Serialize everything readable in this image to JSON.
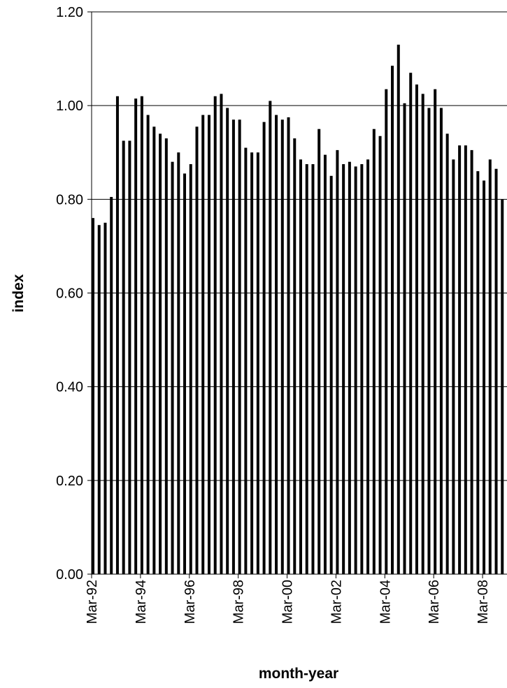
{
  "chart_data": {
    "type": "bar",
    "title": "",
    "xlabel": "month-year",
    "ylabel": "index",
    "ylim": [
      0,
      1.2
    ],
    "yticks": [
      "0.00",
      "0.20",
      "0.40",
      "0.60",
      "0.80",
      "1.00",
      "1.20"
    ],
    "grid": "horizontal major gridlines",
    "legend": "none",
    "bar_color": "#000000",
    "xtick_labels": [
      "Mar-92",
      "Mar-94",
      "Mar-96",
      "Mar-98",
      "Mar-00",
      "Mar-02",
      "Mar-04",
      "Mar-06",
      "Mar-08"
    ],
    "categories": [
      "Mar-92",
      "Jun-92",
      "Sep-92",
      "Dec-92",
      "Mar-93",
      "Jun-93",
      "Sep-93",
      "Dec-93",
      "Mar-94",
      "Jun-94",
      "Sep-94",
      "Dec-94",
      "Mar-95",
      "Jun-95",
      "Sep-95",
      "Dec-95",
      "Mar-96",
      "Jun-96",
      "Sep-96",
      "Dec-96",
      "Mar-97",
      "Jun-97",
      "Sep-97",
      "Dec-97",
      "Mar-98",
      "Jun-98",
      "Sep-98",
      "Dec-98",
      "Mar-99",
      "Jun-99",
      "Sep-99",
      "Dec-99",
      "Mar-00",
      "Jun-00",
      "Sep-00",
      "Dec-00",
      "Mar-01",
      "Jun-01",
      "Sep-01",
      "Dec-01",
      "Mar-02",
      "Jun-02",
      "Sep-02",
      "Dec-02",
      "Mar-03",
      "Jun-03",
      "Sep-03",
      "Dec-03",
      "Mar-04",
      "Jun-04",
      "Sep-04",
      "Dec-04",
      "Mar-05",
      "Jun-05",
      "Sep-05",
      "Dec-05",
      "Mar-06",
      "Jun-06",
      "Sep-06",
      "Dec-06",
      "Mar-07",
      "Jun-07",
      "Sep-07",
      "Dec-07",
      "Mar-08",
      "Jun-08",
      "Sep-08",
      "Dec-08"
    ],
    "values": [
      0.76,
      0.745,
      0.75,
      0.805,
      1.02,
      0.925,
      0.925,
      1.015,
      1.02,
      0.98,
      0.955,
      0.94,
      0.93,
      0.88,
      0.9,
      0.855,
      0.875,
      0.955,
      0.98,
      0.98,
      1.02,
      1.025,
      0.995,
      0.97,
      0.97,
      0.91,
      0.9,
      0.9,
      0.965,
      1.01,
      0.98,
      0.97,
      0.975,
      0.93,
      0.885,
      0.875,
      0.875,
      0.95,
      0.895,
      0.85,
      0.905,
      0.875,
      0.88,
      0.87,
      0.875,
      0.885,
      0.95,
      0.935,
      1.035,
      1.085,
      1.13,
      1.005,
      1.07,
      1.045,
      1.025,
      0.995,
      1.035,
      0.995,
      0.94,
      0.885,
      0.915,
      0.915,
      0.905,
      0.86,
      0.84,
      0.885,
      0.865,
      0.8
    ]
  }
}
